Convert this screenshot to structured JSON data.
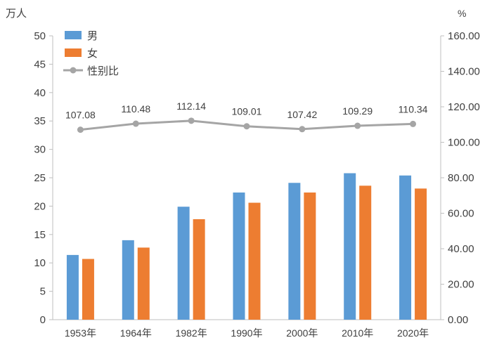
{
  "chart_data": {
    "type": "bar",
    "title": "",
    "categories": [
      "1953年",
      "1964年",
      "1982年",
      "1990年",
      "2000年",
      "2010年",
      "2020年"
    ],
    "series": [
      {
        "name": "男",
        "type": "bar",
        "axis": "left",
        "color": "#5b9bd5",
        "values": [
          11.4,
          14.0,
          19.9,
          22.4,
          24.1,
          25.8,
          25.4
        ]
      },
      {
        "name": "女",
        "type": "bar",
        "axis": "left",
        "color": "#ed7d31",
        "values": [
          10.7,
          12.7,
          17.7,
          20.6,
          22.4,
          23.6,
          23.1
        ]
      },
      {
        "name": "性别比",
        "type": "line",
        "axis": "right",
        "color": "#a5a5a5",
        "values": [
          107.08,
          110.48,
          112.14,
          109.01,
          107.42,
          109.29,
          110.34
        ],
        "labels": [
          "107.08",
          "110.48",
          "112.14",
          "109.01",
          "107.42",
          "109.29",
          "110.34"
        ]
      }
    ],
    "ylabel": "万人",
    "ylim": [
      0,
      50
    ],
    "yticks": [
      "0",
      "5",
      "10",
      "15",
      "20",
      "25",
      "30",
      "35",
      "40",
      "45",
      "50"
    ],
    "y2label": "%",
    "y2lim": [
      0,
      160
    ],
    "y2ticks": [
      "0.00",
      "20.00",
      "40.00",
      "60.00",
      "80.00",
      "100.00",
      "120.00",
      "140.00",
      "160.00"
    ],
    "grid": false,
    "legend": "top-left"
  }
}
